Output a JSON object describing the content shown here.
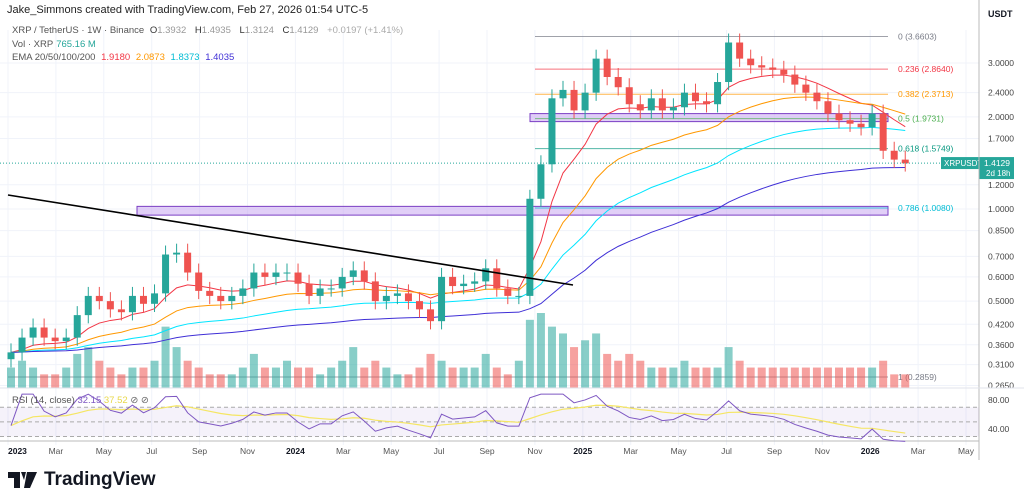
{
  "credit": "Jake_Simmons created with TradingView.com, Feb 27, 2026 01:54 UTC-5",
  "symbol": {
    "title": "XRP / TetherUS · 1W · Binance",
    "open_label": "O",
    "open": "1.3932",
    "high_label": "H",
    "high": "1.4935",
    "low_label": "L",
    "low": "1.3124",
    "close_label": "C",
    "close": "1.4129",
    "change": "+0.0197 (+1.41%)"
  },
  "volume": {
    "label": "Vol · XRP",
    "value": "765.16 M"
  },
  "ema": {
    "label": "EMA 20/50/100/200",
    "v20": "1.9180",
    "v50": "2.0873",
    "v100": "1.8373",
    "v200": "1.4035"
  },
  "rsi": {
    "label": "RSI (14, close)",
    "value": "32.15",
    "ma": "37.52"
  },
  "price_axis": {
    "currency": "USDT",
    "ticks": [
      "3.0000",
      "2.4000",
      "2.0000",
      "1.7000",
      "1.2000",
      "1.0000",
      "0.8500",
      "0.7000",
      "0.6000",
      "0.5000",
      "0.4200",
      "0.3600",
      "0.3100",
      "0.2650"
    ]
  },
  "rsi_axis": {
    "ticks": [
      "80.00",
      "40.00"
    ]
  },
  "time_axis": {
    "ticks": [
      "2023",
      "Mar",
      "May",
      "Jul",
      "Sep",
      "Nov",
      "2024",
      "Mar",
      "May",
      "Jul",
      "Sep",
      "Nov",
      "2025",
      "Mar",
      "May",
      "Jul",
      "Sep",
      "Nov",
      "2026",
      "Mar",
      "May"
    ]
  },
  "price_tag": {
    "symbol": "XRPUSDT",
    "price": "1.4129",
    "countdown": "2d 18h"
  },
  "fib_levels": [
    {
      "label": "0 (3.6603)",
      "price": 3.6603,
      "color": "#787b86"
    },
    {
      "label": "0.236 (2.8640)",
      "price": 2.864,
      "color": "#f23645"
    },
    {
      "label": "0.382 (2.3713)",
      "price": 2.3713,
      "color": "#ff9800"
    },
    {
      "label": "0.5 (1.9731)",
      "price": 1.9731,
      "color": "#4caf50"
    },
    {
      "label": "0.618 (1.5749)",
      "price": 1.5749,
      "color": "#089981"
    },
    {
      "label": "0.786 (1.0080)",
      "price": 1.008,
      "color": "#00bcd4"
    },
    {
      "label": "1 (0.2859)",
      "price": 0.2859,
      "color": "#787b86"
    }
  ],
  "colors": {
    "up": "#26a69a",
    "down": "#ef5350",
    "ema20": "#f23645",
    "ema50": "#ff9800",
    "ema100": "#00e5ff",
    "ema200": "#3f2fd6",
    "rsi": "#7e57c2",
    "rsi_ma": "#f5e663",
    "zone": "#c9a7f0"
  },
  "logo": "TradingView",
  "chart_data": {
    "type": "candlestick",
    "scale": "log",
    "ylim": [
      0.265,
      3.66
    ],
    "x_start": "2023-01-02",
    "x_step": "2 weeks",
    "closes": [
      0.34,
      0.38,
      0.41,
      0.38,
      0.37,
      0.38,
      0.45,
      0.52,
      0.5,
      0.47,
      0.46,
      0.52,
      0.49,
      0.53,
      0.71,
      0.72,
      0.62,
      0.54,
      0.52,
      0.5,
      0.52,
      0.55,
      0.62,
      0.6,
      0.62,
      0.62,
      0.57,
      0.52,
      0.55,
      0.55,
      0.6,
      0.63,
      0.58,
      0.5,
      0.52,
      0.53,
      0.5,
      0.47,
      0.43,
      0.6,
      0.56,
      0.57,
      0.58,
      0.64,
      0.55,
      0.52,
      0.52,
      1.08,
      1.4,
      2.3,
      2.45,
      2.1,
      2.4,
      3.1,
      2.7,
      2.5,
      2.2,
      2.1,
      2.3,
      2.1,
      2.15,
      2.4,
      2.25,
      2.2,
      2.6,
      3.5,
      3.1,
      2.95,
      2.9,
      2.85,
      2.75,
      2.55,
      2.4,
      2.25,
      2.05,
      1.95,
      1.9,
      1.85,
      2.05,
      1.55,
      1.45,
      1.41
    ],
    "volume_relative": [
      3,
      4,
      3,
      2,
      2,
      3,
      5,
      6,
      4,
      3,
      2,
      3,
      3,
      4,
      9,
      6,
      4,
      3,
      2,
      2,
      2,
      3,
      5,
      3,
      3,
      4,
      3,
      3,
      2,
      3,
      4,
      6,
      3,
      4,
      3,
      2,
      2,
      3,
      5,
      4,
      3,
      3,
      3,
      5,
      3,
      2,
      4,
      10,
      11,
      9,
      8,
      6,
      7,
      8,
      5,
      4,
      5,
      4,
      3,
      3,
      3,
      4,
      3,
      3,
      3,
      6,
      4,
      3,
      3,
      3,
      3,
      3,
      3,
      3,
      3,
      3,
      3,
      3,
      3,
      4,
      2,
      2
    ],
    "trendline": [
      {
        "date": "2023-01",
        "price": 0.78
      },
      {
        "date": "2024-12",
        "price": 0.56
      }
    ],
    "zones": [
      {
        "from": "2023-07",
        "low": 0.955,
        "high": 1.02
      },
      {
        "from": "2024-12",
        "low": 1.93,
        "high": 2.05
      }
    ]
  }
}
